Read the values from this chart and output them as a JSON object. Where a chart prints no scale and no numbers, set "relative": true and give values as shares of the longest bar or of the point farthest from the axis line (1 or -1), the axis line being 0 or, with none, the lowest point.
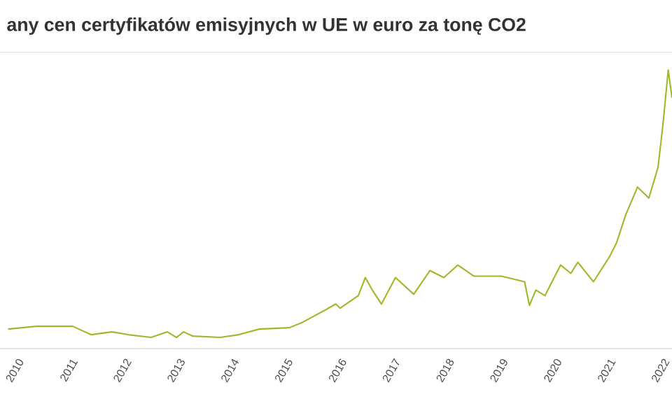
{
  "chart_data": {
    "type": "line",
    "title": "any cen certyfikatów emisyjnych w UE w euro za tonę CO2",
    "relative": true,
    "x": [
      2009.87,
      2010.39,
      2011.07,
      2011.41,
      2011.8,
      2012.1,
      2012.53,
      2012.83,
      2013.0,
      2013.13,
      2013.3,
      2013.81,
      2014.16,
      2014.54,
      2015.1,
      2015.35,
      2015.78,
      2015.96,
      2016.04,
      2016.38,
      2016.51,
      2016.64,
      2016.81,
      2017.07,
      2017.41,
      2017.71,
      2017.97,
      2018.23,
      2018.53,
      2019.04,
      2019.47,
      2019.56,
      2019.68,
      2019.85,
      2020.14,
      2020.33,
      2020.46,
      2020.75,
      2021.05,
      2021.18,
      2021.35,
      2021.57,
      2021.78,
      2021.95,
      2022.04,
      2022.14,
      2022.21
    ],
    "series": [
      {
        "color": "#9bbb2a",
        "values": [
          0.07,
          0.08,
          0.08,
          0.05,
          0.06,
          0.05,
          0.04,
          0.06,
          0.04,
          0.06,
          0.045,
          0.04,
          0.05,
          0.07,
          0.075,
          0.095,
          0.14,
          0.16,
          0.145,
          0.19,
          0.255,
          0.21,
          0.16,
          0.255,
          0.195,
          0.28,
          0.255,
          0.3,
          0.26,
          0.26,
          0.24,
          0.155,
          0.21,
          0.19,
          0.3,
          0.27,
          0.31,
          0.24,
          0.33,
          0.38,
          0.48,
          0.58,
          0.54,
          0.65,
          0.8,
          1.0,
          0.9
        ]
      }
    ],
    "xlim": [
      2009.72,
      2022.21
    ],
    "xticks": [
      2010,
      2011,
      2012,
      2013,
      2014,
      2015,
      2016,
      2017,
      2018,
      2019,
      2020,
      2021,
      2022
    ],
    "grid": false,
    "marker": "none",
    "line_style": "solid"
  }
}
